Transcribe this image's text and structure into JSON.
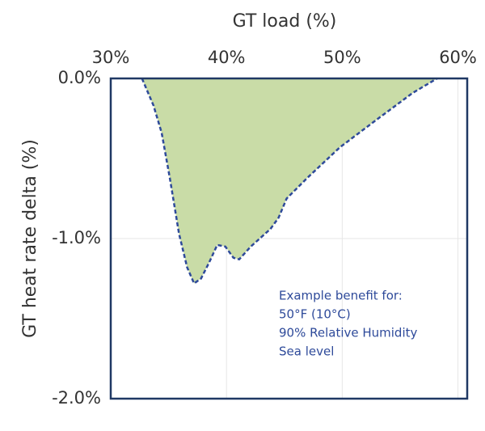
{
  "chart_data": {
    "type": "area",
    "title": "GT load (%)",
    "y_label": "GT heat rate delta (%)",
    "x": [
      32.7,
      33.7,
      34.4,
      35.1,
      35.9,
      36.6,
      37.2,
      37.8,
      38.5,
      39.2,
      39.9,
      40.6,
      41.1,
      42.1,
      43.8,
      44.5,
      45.2,
      47.0,
      49.8,
      53.3,
      56.1,
      58.2
    ],
    "series": [
      {
        "values": [
          0,
          -0.17,
          -0.34,
          -0.62,
          -0.97,
          -1.18,
          -1.28,
          -1.25,
          -1.15,
          -1.04,
          -1.05,
          -1.12,
          -1.13,
          -1.05,
          -0.94,
          -0.87,
          -0.75,
          -0.62,
          -0.43,
          -0.24,
          -0.09,
          0
        ],
        "color": "#c9dca7",
        "line_color": "#2e4a9a"
      }
    ],
    "xlim": [
      30,
      60.8
    ],
    "xticks": [
      {
        "value": 30,
        "label": "30%"
      },
      {
        "value": 40,
        "label": "40%"
      },
      {
        "value": 50,
        "label": "50%"
      },
      {
        "value": 60,
        "label": "60%"
      }
    ],
    "ylim": [
      -2,
      0
    ],
    "yticks": [
      {
        "value": 0,
        "label": "0.0%"
      },
      {
        "value": -1,
        "label": "-1.0%"
      },
      {
        "value": -2,
        "label": "-2.0%"
      }
    ],
    "grid": true,
    "annotation": [
      "Example benefit for:",
      "50°F (10°C)",
      "90% Relative Humidity",
      "Sea level"
    ]
  }
}
